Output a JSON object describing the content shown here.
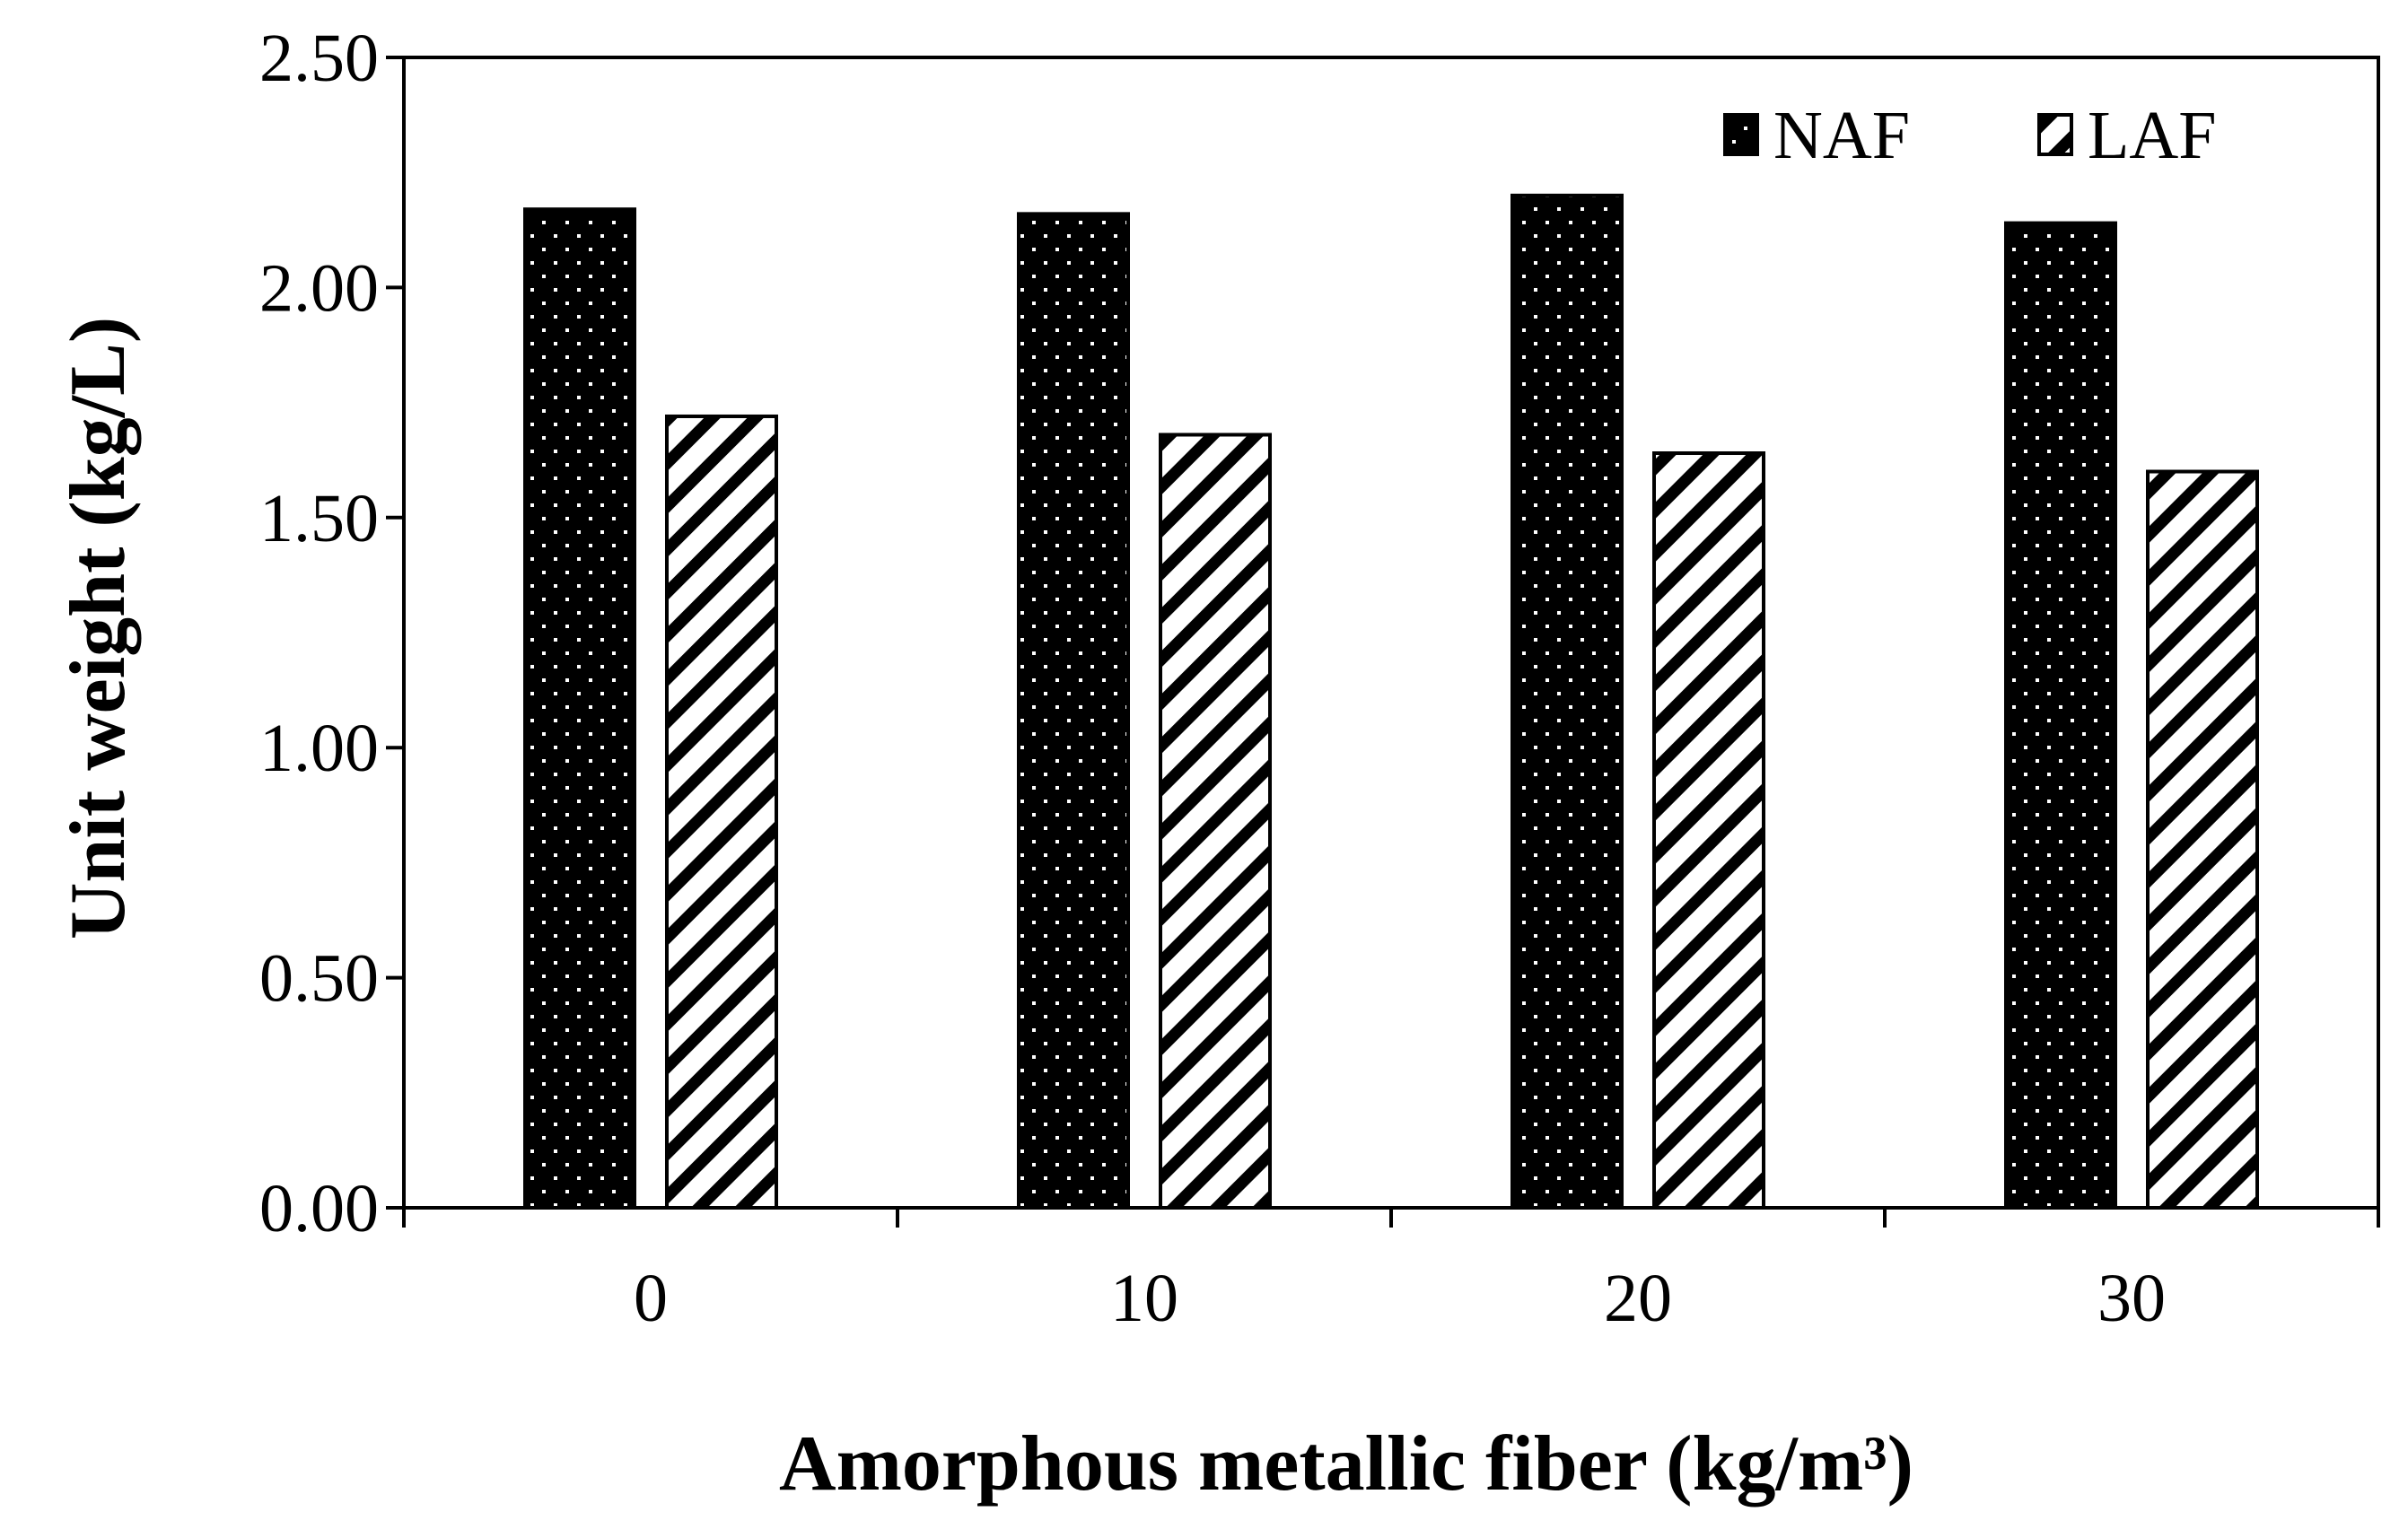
{
  "chart_data": {
    "type": "bar",
    "title": "",
    "xlabel": "Amorphous metallic fiber (kg/m³)",
    "ylabel": "Unit weight (kg/L)",
    "categories": [
      "0",
      "10",
      "20",
      "30"
    ],
    "ylim": [
      0,
      2.5
    ],
    "yticks": [
      "0.00",
      "0.50",
      "1.00",
      "1.50",
      "2.00",
      "2.50"
    ],
    "ytick_values": [
      0,
      0.5,
      1.0,
      1.5,
      2.0,
      2.5
    ],
    "grid": false,
    "legend_position": "top-right",
    "series": [
      {
        "name": "NAF",
        "values": [
          2.17,
          2.16,
          2.2,
          2.14
        ],
        "pattern": "dotted-black",
        "color": "#000000"
      },
      {
        "name": "LAF",
        "values": [
          1.72,
          1.68,
          1.64,
          1.6
        ],
        "pattern": "diagonal-hatch",
        "color": "#000000"
      }
    ]
  }
}
